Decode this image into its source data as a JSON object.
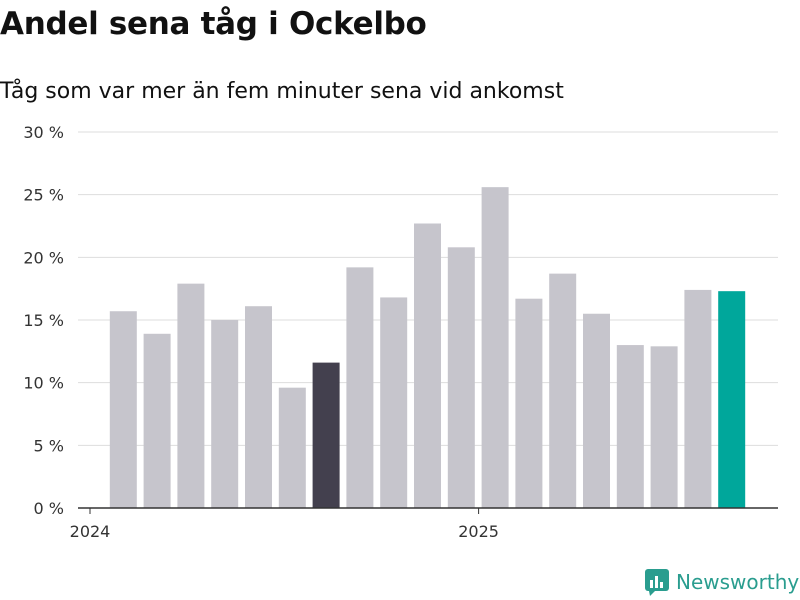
{
  "header": {
    "title": "Andel sena tåg i Ockelbo",
    "subtitle": "Tåg som var mer än fem minuter sena vid ankomst"
  },
  "brand": {
    "name": "Newsworthy",
    "icon": "newsworthy-logo-icon",
    "color": "#2a9d8f"
  },
  "chart_data": {
    "type": "bar",
    "title": "Andel sena tåg i Ockelbo",
    "subtitle": "Tåg som var mer än fem minuter sena vid ankomst",
    "xlabel": "",
    "ylabel": "",
    "ylim": [
      0,
      30
    ],
    "yticks": [
      0,
      5,
      10,
      15,
      20,
      25,
      30
    ],
    "ytick_labels": [
      "0 %",
      "5 %",
      "10 %",
      "15 %",
      "20 %",
      "25 %",
      "30 %"
    ],
    "grid": true,
    "x_tick_labels": [
      {
        "label": "2024",
        "at_month": "2024-01"
      },
      {
        "label": "2025",
        "at_month": "2025-01"
      }
    ],
    "categories": [
      "2024-01",
      "2024-02",
      "2024-03",
      "2024-04",
      "2024-05",
      "2024-06",
      "2024-07",
      "2024-08",
      "2024-09",
      "2024-10",
      "2024-11",
      "2024-12",
      "2025-01",
      "2025-02",
      "2025-03",
      "2025-04",
      "2025-05",
      "2025-06",
      "2025-07",
      "2025-08"
    ],
    "values": [
      0,
      15.7,
      13.9,
      17.9,
      15.0,
      16.1,
      9.6,
      11.6,
      19.2,
      16.8,
      22.7,
      20.8,
      25.6,
      16.7,
      18.7,
      15.5,
      13.0,
      12.9,
      17.4,
      17.3
    ],
    "colors": {
      "default": "#c6c5cc",
      "highlight_same_month_last_year": "#43404e",
      "latest": "#00a79b"
    },
    "highlight_index": 7,
    "latest_index": 19
  }
}
